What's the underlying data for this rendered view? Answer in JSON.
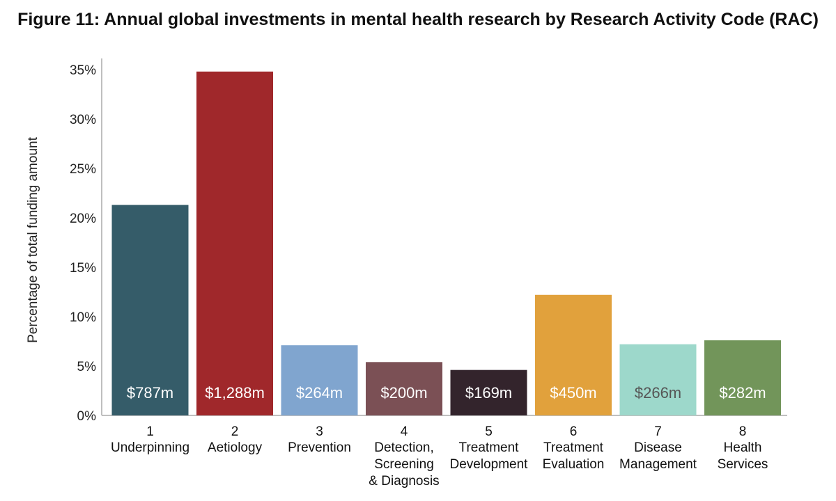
{
  "title": "Figure 11: Annual global investments in mental health research by Research Activity Code (RAC)",
  "chart_data": {
    "type": "bar",
    "ylabel": "Percentage of total funding amount",
    "xlabel": "",
    "ylim": [
      0,
      35
    ],
    "yticks": [
      0,
      5,
      10,
      15,
      20,
      25,
      30,
      35
    ],
    "ytick_labels": [
      "0%",
      "5%",
      "10%",
      "15%",
      "20%",
      "25%",
      "30%",
      "35%"
    ],
    "grid": false,
    "categories": [
      {
        "code": "1",
        "name_lines": [
          "Underpinning"
        ]
      },
      {
        "code": "2",
        "name_lines": [
          "Aetiology"
        ]
      },
      {
        "code": "3",
        "name_lines": [
          "Prevention"
        ]
      },
      {
        "code": "4",
        "name_lines": [
          "Detection,",
          "Screening",
          "& Diagnosis"
        ]
      },
      {
        "code": "5",
        "name_lines": [
          "Treatment",
          "Development"
        ]
      },
      {
        "code": "6",
        "name_lines": [
          "Treatment",
          "Evaluation"
        ]
      },
      {
        "code": "7",
        "name_lines": [
          "Disease",
          "Management"
        ]
      },
      {
        "code": "8",
        "name_lines": [
          "Health",
          "Services"
        ]
      }
    ],
    "values": [
      21.3,
      34.8,
      7.1,
      5.4,
      4.6,
      12.2,
      7.2,
      7.6
    ],
    "data_labels": [
      "$787m",
      "$1,288m",
      "$264m",
      "$200m",
      "$169m",
      "$450m",
      "$266m",
      "$282m"
    ],
    "colors": [
      "#355c69",
      "#a0282b",
      "#80a5cf",
      "#7b5055",
      "#33242c",
      "#e1a13c",
      "#9dd8cb",
      "#72955a"
    ],
    "label_colors": [
      "#ffffff",
      "#ffffff",
      "#ffffff",
      "#ffffff",
      "#ffffff",
      "#ffffff",
      "#555555",
      "#ffffff"
    ]
  }
}
